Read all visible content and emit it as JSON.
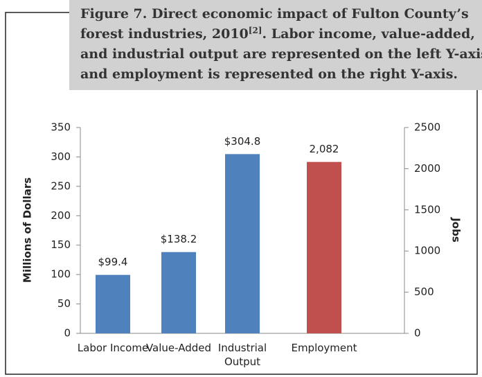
{
  "chart_data": {
    "type": "bar",
    "title": [
      "Figure 7. Direct economic impact of Fulton County’s",
      "forest industries, 2010",
      "[2]",
      ". Labor income, value-added,",
      "and industrial output are represented on the left Y-axis,",
      "and employment is represented on the right Y-axis."
    ],
    "ylabel": "Millions of Dollars",
    "y2label": "Jobs",
    "categories": [
      "Labor Income",
      "Value-Added",
      "Industrial Output",
      "Employment"
    ],
    "series": [
      {
        "color": "#4f81bd",
        "values": [
          99.4,
          138.2,
          304.8,
          null
        ],
        "value_labels": [
          "$99.4",
          "$138.2",
          "$304.8",
          null
        ]
      },
      {
        "color": "#c0504d",
        "axis": "y2",
        "values": [
          null,
          null,
          null,
          2082
        ],
        "value_labels": [
          null,
          null,
          null,
          "2,082"
        ]
      }
    ],
    "ylim": [
      0,
      350
    ],
    "yticks": [
      0,
      50,
      100,
      150,
      200,
      250,
      300,
      350
    ],
    "y2lim": [
      0,
      2500
    ],
    "y2ticks": [
      0,
      500,
      1000,
      1500,
      2000,
      2500
    ],
    "grid": false
  }
}
